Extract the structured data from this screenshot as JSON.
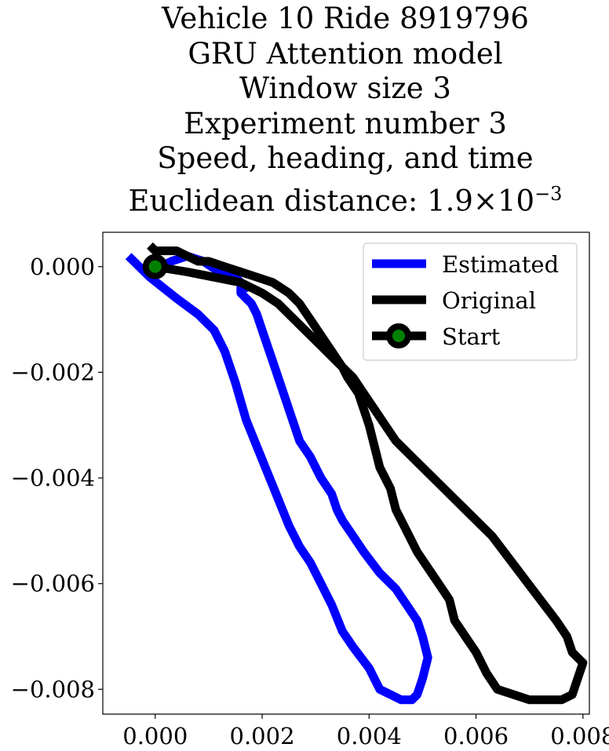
{
  "chart_data": {
    "type": "line",
    "title_lines": [
      "Vehicle 10 Ride 8919796",
      "GRU Attention model",
      "Window size 3",
      "Experiment number 3",
      "Speed, heading, and time"
    ],
    "title_metric": {
      "label": "Euclidean distance: 1.9",
      "times": "×",
      "base": "10",
      "exponent": "−3"
    },
    "xlabel": "",
    "ylabel": "",
    "xlim": [
      -0.00098,
      0.00812
    ],
    "ylim": [
      -0.00847,
      0.00065
    ],
    "xticks": [
      0.0,
      0.002,
      0.004,
      0.006,
      0.008
    ],
    "xtick_labels": [
      "0.000",
      "0.002",
      "0.004",
      "0.006",
      "0.008"
    ],
    "yticks": [
      0.0,
      -0.002,
      -0.004,
      -0.006,
      -0.008
    ],
    "ytick_labels": [
      "0.000",
      "−0.002",
      "−0.004",
      "−0.006",
      "−0.008"
    ],
    "legend_position": "top-right",
    "series": [
      {
        "name": "Estimated",
        "color": "#0000ff",
        "x": [
          -0.0005,
          -0.0001,
          0.0004,
          0.0008,
          0.0011,
          0.0013,
          0.0015,
          0.0017,
          0.0019,
          0.0021,
          0.0023,
          0.0025,
          0.0027,
          0.0029,
          0.0031,
          0.0033,
          0.0035,
          0.0037,
          0.004,
          0.0042,
          0.0044,
          0.0046,
          0.0048,
          0.0049,
          0.005,
          0.0051,
          0.005,
          0.0049,
          0.0047,
          0.0045,
          0.0042,
          0.0039,
          0.0037,
          0.0035,
          0.0034,
          0.0033,
          0.0031,
          0.0029,
          0.0027,
          0.0026,
          0.0025,
          0.0024,
          0.0023,
          0.0022,
          0.0021,
          0.002,
          0.0019,
          0.0018,
          0.0017,
          0.0016,
          0.0016,
          0.0017,
          0.0016,
          0.0015,
          0.0012,
          0.0009,
          0.0006,
          0.0003,
          0.0001,
          0.0
        ],
        "y": [
          0.0002,
          -0.0002,
          -0.0006,
          -0.0009,
          -0.0012,
          -0.0016,
          -0.0022,
          -0.0029,
          -0.0034,
          -0.0039,
          -0.0044,
          -0.0049,
          -0.0053,
          -0.0056,
          -0.006,
          -0.0064,
          -0.0069,
          -0.0072,
          -0.0076,
          -0.008,
          -0.0081,
          -0.0082,
          -0.0082,
          -0.0081,
          -0.0078,
          -0.0074,
          -0.007,
          -0.0067,
          -0.0064,
          -0.0061,
          -0.0058,
          -0.0054,
          -0.0051,
          -0.0048,
          -0.0046,
          -0.0043,
          -0.004,
          -0.0036,
          -0.0033,
          -0.003,
          -0.0027,
          -0.0024,
          -0.0021,
          -0.0018,
          -0.0015,
          -0.0012,
          -0.0009,
          -0.0007,
          -0.0006,
          -0.0005,
          -0.0004,
          -0.0004,
          -0.0003,
          -0.0002,
          -0.0001,
          0.0001,
          0.0002,
          0.0001,
          0.0,
          0.0
        ]
      },
      {
        "name": "Original",
        "color": "#000000",
        "x": [
          0.0,
          0.0006,
          0.0011,
          0.0016,
          0.002,
          0.0023,
          0.0025,
          0.0027,
          0.0029,
          0.0031,
          0.0033,
          0.0035,
          0.0037,
          0.0039,
          0.0041,
          0.0043,
          0.0045,
          0.0048,
          0.0051,
          0.0054,
          0.0057,
          0.006,
          0.0063,
          0.0066,
          0.0069,
          0.0072,
          0.0075,
          0.0077,
          0.0078,
          0.0079,
          0.008,
          0.0079,
          0.0078,
          0.0076,
          0.0073,
          0.007,
          0.0067,
          0.0064,
          0.0062,
          0.006,
          0.0058,
          0.0056,
          0.0055,
          0.0053,
          0.0051,
          0.0049,
          0.0047,
          0.0045,
          0.0044,
          0.0042,
          0.0041,
          0.004,
          0.0039,
          0.0038,
          0.0036,
          0.0035,
          0.0033,
          0.0031,
          0.0029,
          0.0027,
          0.0025,
          0.0022,
          0.0019,
          0.0016,
          0.0013,
          0.001,
          0.0008,
          0.0006,
          0.0004,
          0.0002,
          0.0,
          -0.0001
        ],
        "y": [
          0.0,
          -0.0001,
          -0.0002,
          -0.0003,
          -0.0005,
          -0.0007,
          -0.0009,
          -0.0011,
          -0.0013,
          -0.0015,
          -0.0017,
          -0.0019,
          -0.0021,
          -0.0024,
          -0.0027,
          -0.003,
          -0.0033,
          -0.0036,
          -0.0039,
          -0.0042,
          -0.0045,
          -0.0048,
          -0.0051,
          -0.0055,
          -0.0059,
          -0.0063,
          -0.0067,
          -0.007,
          -0.0073,
          -0.0074,
          -0.0075,
          -0.0078,
          -0.0081,
          -0.0082,
          -0.0082,
          -0.0082,
          -0.0081,
          -0.008,
          -0.0077,
          -0.0073,
          -0.007,
          -0.0067,
          -0.0063,
          -0.006,
          -0.0057,
          -0.0054,
          -0.005,
          -0.0046,
          -0.0042,
          -0.0038,
          -0.0034,
          -0.003,
          -0.0027,
          -0.0024,
          -0.0021,
          -0.0019,
          -0.0016,
          -0.0013,
          -0.001,
          -0.0007,
          -0.0005,
          -0.0003,
          -0.0002,
          -0.0001,
          0.0,
          0.0001,
          0.0001,
          0.0002,
          0.0003,
          0.0003,
          0.0003,
          0.0004
        ]
      },
      {
        "name": "Start",
        "color": "#000000",
        "marker_face": "#008000",
        "x": [
          0.0
        ],
        "y": [
          0.0
        ]
      }
    ]
  }
}
